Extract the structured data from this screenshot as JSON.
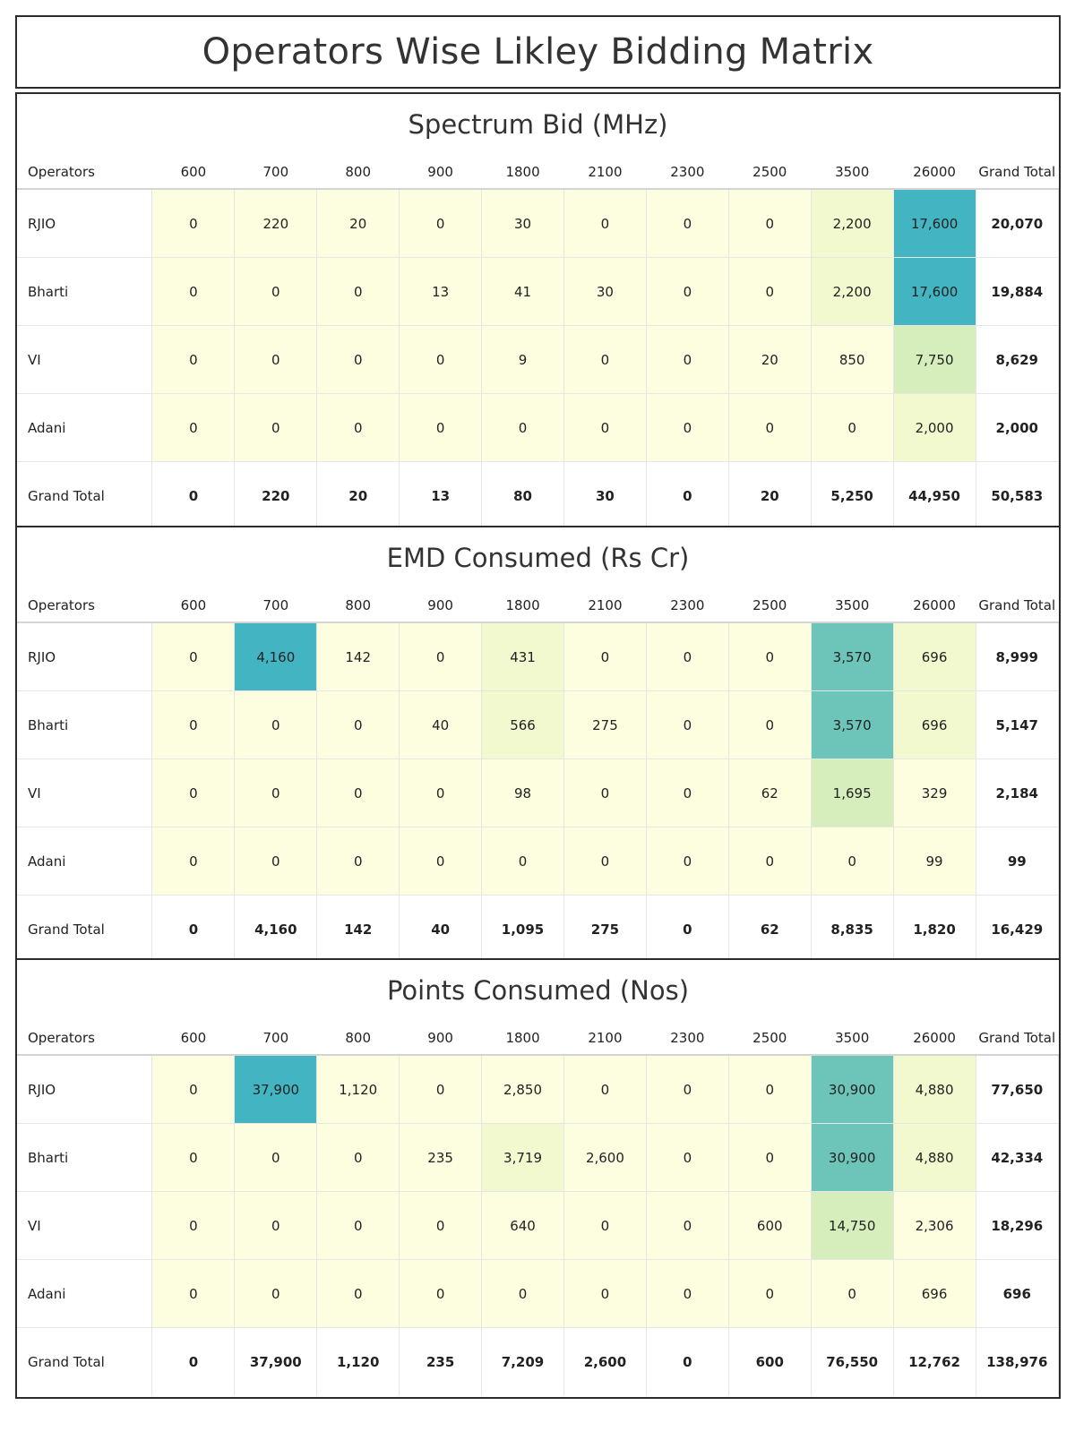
{
  "title": "Operators Wise Likley Bidding Matrix",
  "chart_data": [
    {
      "type": "heatmap",
      "title": "Spectrum Bid (MHz)",
      "row_header": "Operators",
      "columns": [
        "600",
        "700",
        "800",
        "900",
        "1800",
        "2100",
        "2300",
        "2500",
        "3500",
        "26000"
      ],
      "total_label": "Grand Total",
      "rows": [
        {
          "name": "RJIO",
          "values": [
            0,
            220,
            20,
            0,
            30,
            0,
            0,
            0,
            2200,
            17600
          ],
          "total": 20070
        },
        {
          "name": "Bharti",
          "values": [
            0,
            0,
            0,
            13,
            41,
            30,
            0,
            0,
            2200,
            17600
          ],
          "total": 19884
        },
        {
          "name": "VI",
          "values": [
            0,
            0,
            0,
            0,
            9,
            0,
            0,
            20,
            850,
            7750
          ],
          "total": 8629
        },
        {
          "name": "Adani",
          "values": [
            0,
            0,
            0,
            0,
            0,
            0,
            0,
            0,
            0,
            2000
          ],
          "total": 2000
        }
      ],
      "totals": {
        "name": "Grand Total",
        "values": [
          0,
          220,
          20,
          13,
          80,
          30,
          0,
          20,
          5250,
          44950
        ],
        "total": 50583
      }
    },
    {
      "type": "heatmap",
      "title": "EMD Consumed (Rs Cr)",
      "row_header": "Operators",
      "columns": [
        "600",
        "700",
        "800",
        "900",
        "1800",
        "2100",
        "2300",
        "2500",
        "3500",
        "26000"
      ],
      "total_label": "Grand Total",
      "rows": [
        {
          "name": "RJIO",
          "values": [
            0,
            4160,
            142,
            0,
            431,
            0,
            0,
            0,
            3570,
            696
          ],
          "total": 8999
        },
        {
          "name": "Bharti",
          "values": [
            0,
            0,
            0,
            40,
            566,
            275,
            0,
            0,
            3570,
            696
          ],
          "total": 5147
        },
        {
          "name": "VI",
          "values": [
            0,
            0,
            0,
            0,
            98,
            0,
            0,
            62,
            1695,
            329
          ],
          "total": 2184
        },
        {
          "name": "Adani",
          "values": [
            0,
            0,
            0,
            0,
            0,
            0,
            0,
            0,
            0,
            99
          ],
          "total": 99
        }
      ],
      "totals": {
        "name": "Grand Total",
        "values": [
          0,
          4160,
          142,
          40,
          1095,
          275,
          0,
          62,
          8835,
          1820
        ],
        "total": 16429
      }
    },
    {
      "type": "heatmap",
      "title": "Points Consumed (Nos)",
      "row_header": "Operators",
      "columns": [
        "600",
        "700",
        "800",
        "900",
        "1800",
        "2100",
        "2300",
        "2500",
        "3500",
        "26000"
      ],
      "total_label": "Grand Total",
      "rows": [
        {
          "name": "RJIO",
          "values": [
            0,
            37900,
            1120,
            0,
            2850,
            0,
            0,
            0,
            30900,
            4880
          ],
          "total": 77650
        },
        {
          "name": "Bharti",
          "values": [
            0,
            0,
            0,
            235,
            3719,
            2600,
            0,
            0,
            30900,
            4880
          ],
          "total": 42334
        },
        {
          "name": "VI",
          "values": [
            0,
            0,
            0,
            0,
            640,
            0,
            0,
            600,
            14750,
            2306
          ],
          "total": 18296
        },
        {
          "name": "Adani",
          "values": [
            0,
            0,
            0,
            0,
            0,
            0,
            0,
            0,
            0,
            696
          ],
          "total": 696
        }
      ],
      "totals": {
        "name": "Grand Total",
        "values": [
          0,
          37900,
          1120,
          235,
          7209,
          2600,
          0,
          600,
          76550,
          12762
        ],
        "total": 138976
      }
    }
  ],
  "colors": {
    "low": "#fdfee0",
    "mid_low": "#f3f9cf",
    "mid": "#d5eebb",
    "mid_high": "#6cc5b8",
    "high": "#42b4c2"
  }
}
